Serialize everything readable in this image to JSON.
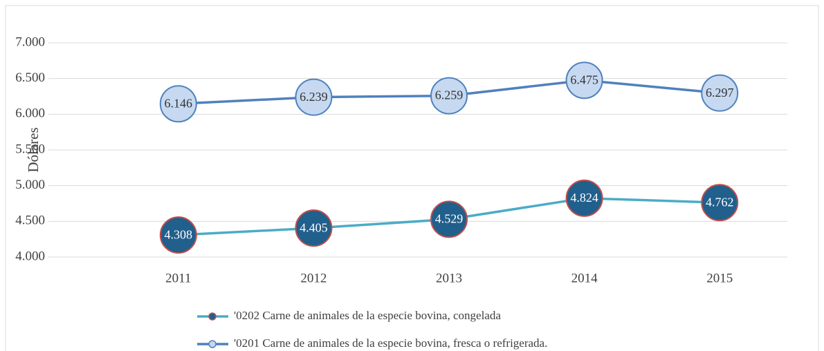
{
  "chart_data": {
    "type": "line",
    "y_label": "Dólares",
    "categories": [
      "2011",
      "2012",
      "2013",
      "2014",
      "2015"
    ],
    "series": [
      {
        "name": "'0202 Carne de animales de la especie bovina, congelada",
        "color": "#4bacc6",
        "marker_color": "#215f8c",
        "marker_edge": "#c0504d",
        "label_color": "#ffffff",
        "values": [
          4308,
          4405,
          4529,
          4824,
          4762
        ],
        "value_labels": [
          "4.308",
          "4.405",
          "4.529",
          "4.824",
          "4.762"
        ]
      },
      {
        "name": "'0201 Carne de animales de la especie bovina, fresca o refrigerada.",
        "color": "#4f81bd",
        "marker_color": "#c6d9f1",
        "marker_edge": "#4f81bd",
        "label_color": "#333333",
        "values": [
          6146,
          6239,
          6259,
          6475,
          6297
        ],
        "value_labels": [
          "6.146",
          "6.239",
          "6.259",
          "6.475",
          "6.297"
        ]
      }
    ],
    "ylim": [
      4000,
      7000
    ],
    "yticks": [
      {
        "value": 4000,
        "label": "4.000"
      },
      {
        "value": 4500,
        "label": "4.500"
      },
      {
        "value": 5000,
        "label": "5.000"
      },
      {
        "value": 5500,
        "label": "5.500"
      },
      {
        "value": 6000,
        "label": "6.000"
      },
      {
        "value": 6500,
        "label": "6.500"
      },
      {
        "value": 7000,
        "label": "7.000"
      }
    ],
    "grid": true,
    "legend": "bottom"
  }
}
